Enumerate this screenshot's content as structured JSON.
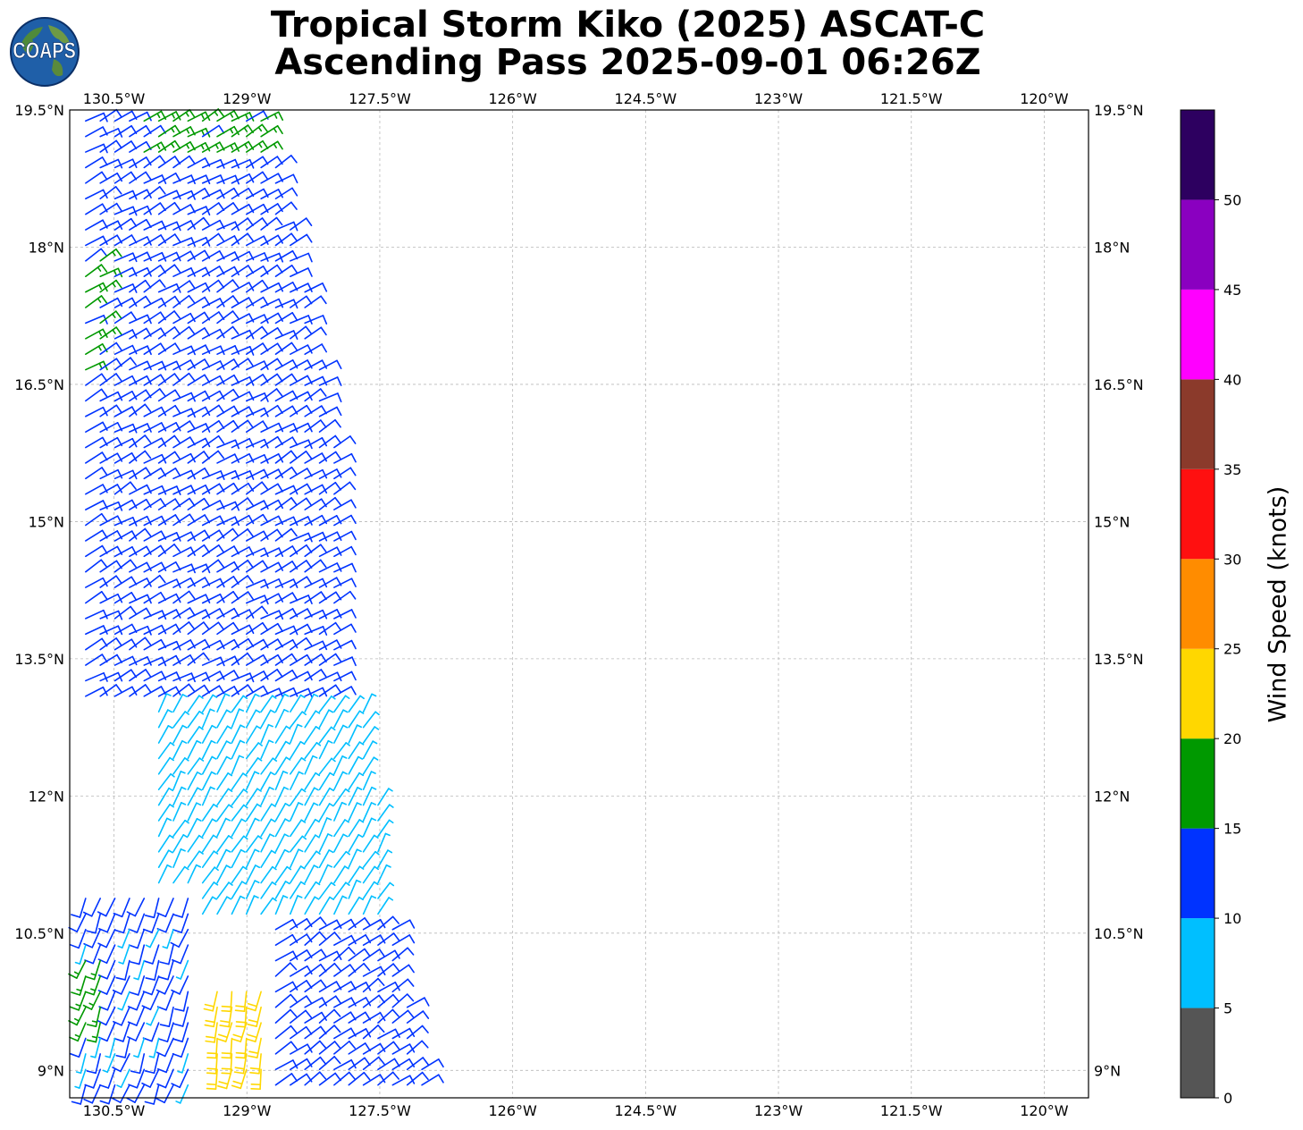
{
  "title_line1": "Tropical Storm Kiko (2025) ASCAT-C",
  "title_line2": "Ascending Pass 2025-09-01 06:26Z",
  "logo_text": "COAPS",
  "chart_data": {
    "type": "scatter",
    "subtype": "wind-barb-map",
    "xlim": [
      -131.0,
      -119.5
    ],
    "ylim": [
      8.7,
      19.5
    ],
    "x_ticks": [
      -130.5,
      -129,
      -127.5,
      -126,
      -124.5,
      -123,
      -121.5,
      -120
    ],
    "x_tick_labels": [
      "130.5°W",
      "129°W",
      "127.5°W",
      "126°W",
      "124.5°W",
      "123°W",
      "121.5°W",
      "120°W"
    ],
    "y_ticks": [
      9,
      10.5,
      12,
      13.5,
      15,
      16.5,
      18,
      19.5
    ],
    "y_tick_labels": [
      "9°N",
      "10.5°N",
      "12°N",
      "13.5°N",
      "15°N",
      "16.5°N",
      "18°N",
      "19.5°N"
    ],
    "grid": true,
    "swath": {
      "west_lon": -130.9,
      "east_edge": [
        [
          19.5,
          -128.8
        ],
        [
          17.5,
          -128.3
        ],
        [
          16.0,
          -128.0
        ],
        [
          15.0,
          -127.9
        ],
        [
          13.5,
          -127.7
        ],
        [
          12.0,
          -127.5
        ],
        [
          11.0,
          -127.4
        ],
        [
          9.0,
          -127.0
        ],
        [
          8.7,
          -126.9
        ]
      ]
    },
    "colorbar": {
      "label": "Wind Speed (knots)",
      "ticks": [
        0,
        5,
        10,
        15,
        20,
        25,
        30,
        35,
        40,
        45,
        50
      ],
      "bins": [
        {
          "min": 0,
          "max": 5,
          "color": "#555555"
        },
        {
          "min": 5,
          "max": 10,
          "color": "#00bfff"
        },
        {
          "min": 10,
          "max": 15,
          "color": "#0033ff"
        },
        {
          "min": 15,
          "max": 20,
          "color": "#009900"
        },
        {
          "min": 20,
          "max": 25,
          "color": "#ffd700"
        },
        {
          "min": 25,
          "max": 30,
          "color": "#ff8c00"
        },
        {
          "min": 30,
          "max": 35,
          "color": "#ff1010"
        },
        {
          "min": 35,
          "max": 40,
          "color": "#8b3a2b"
        },
        {
          "min": 40,
          "max": 45,
          "color": "#ff00ff"
        },
        {
          "min": 45,
          "max": 50,
          "color": "#8a00c0"
        },
        {
          "min": 50,
          "max": 55,
          "color": "#2d0060"
        }
      ]
    },
    "wind_regions": [
      {
        "name": "north-green",
        "lat": [
          18.9,
          19.5
        ],
        "lon": [
          -130.2,
          -128.8
        ],
        "speed": 16,
        "direction_deg": 60
      },
      {
        "name": "west-green",
        "lat": [
          16.5,
          18.0
        ],
        "lon": [
          -130.9,
          -130.5
        ],
        "speed": 16,
        "direction_deg": 60
      },
      {
        "name": "northern-blue",
        "lat": [
          13.0,
          19.5
        ],
        "lon": [
          -130.9,
          -127.9
        ],
        "speed": 12,
        "direction_deg": 60
      },
      {
        "name": "cyan-band",
        "lat": [
          10.7,
          13.0
        ],
        "lon": [
          -130.0,
          -127.5
        ],
        "speed": 8,
        "direction_deg": 30
      },
      {
        "name": "southern-blue",
        "lat": [
          8.7,
          10.7
        ],
        "lon": [
          -128.7,
          -127.0
        ],
        "speed": 12,
        "direction_deg": 55
      },
      {
        "name": "southwest-blue",
        "lat": [
          8.7,
          11.0
        ],
        "lon": [
          -130.9,
          -129.6
        ],
        "speed": 11,
        "direction_deg": 200
      },
      {
        "name": "southwest-green",
        "lat": [
          9.4,
          10.2
        ],
        "lon": [
          -130.9,
          -130.5
        ],
        "speed": 17,
        "direction_deg": 200
      },
      {
        "name": "yellow-core",
        "lat": [
          8.9,
          9.9
        ],
        "lon": [
          -129.5,
          -128.8
        ],
        "speed": 22,
        "direction_deg": 190
      },
      {
        "name": "orange-core",
        "lat": [
          9.5,
          9.7
        ],
        "lon": [
          -128.9,
          -128.8
        ],
        "speed": 26,
        "direction_deg": 190
      }
    ]
  }
}
